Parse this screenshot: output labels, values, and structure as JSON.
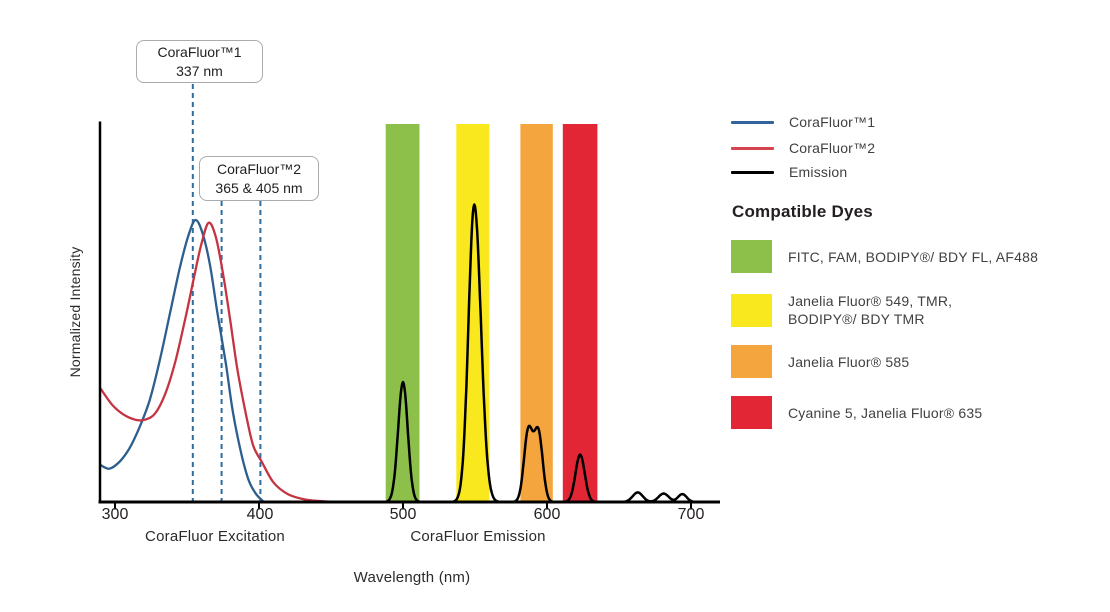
{
  "chart_data": {
    "type": "line",
    "title": "",
    "xlabel": "Wavelength (nm)",
    "ylabel": "Normalized Intensity",
    "x_ticks": [
      300,
      400,
      500,
      600,
      700
    ],
    "x_range_nm": [
      290,
      716
    ],
    "y_range": [
      0,
      1.35
    ],
    "grid": false,
    "legend_position": "right",
    "section_labels": [
      {
        "text": "CoraFluor Excitation"
      },
      {
        "text": "CoraFluor Emission"
      }
    ],
    "series": [
      {
        "name": "CoraFluor™1",
        "role": "excitation",
        "color": "#2d5e8e",
        "points": [
          [
            290,
            0.131
          ],
          [
            296,
            0.118
          ],
          [
            303,
            0.142
          ],
          [
            310,
            0.19
          ],
          [
            317,
            0.265
          ],
          [
            324,
            0.36
          ],
          [
            331,
            0.5
          ],
          [
            338,
            0.665
          ],
          [
            345,
            0.83
          ],
          [
            351,
            0.945
          ],
          [
            356,
            1.0
          ],
          [
            361,
            0.95
          ],
          [
            366,
            0.84
          ],
          [
            371,
            0.675
          ],
          [
            377,
            0.49
          ],
          [
            382,
            0.315
          ],
          [
            388,
            0.165
          ],
          [
            393,
            0.075
          ],
          [
            398,
            0.028
          ],
          [
            403,
            0.002
          ]
        ]
      },
      {
        "name": "CoraFluor™2",
        "role": "excitation",
        "color": "#c53442",
        "points": [
          [
            290,
            0.402
          ],
          [
            298,
            0.345
          ],
          [
            306,
            0.31
          ],
          [
            314,
            0.292
          ],
          [
            321,
            0.292
          ],
          [
            328,
            0.315
          ],
          [
            335,
            0.385
          ],
          [
            342,
            0.5
          ],
          [
            349,
            0.655
          ],
          [
            355,
            0.8
          ],
          [
            360,
            0.915
          ],
          [
            365,
            0.99
          ],
          [
            370,
            0.94
          ],
          [
            375,
            0.81
          ],
          [
            380,
            0.645
          ],
          [
            385,
            0.47
          ],
          [
            391,
            0.31
          ],
          [
            396,
            0.2
          ],
          [
            402,
            0.142
          ],
          [
            410,
            0.07
          ],
          [
            420,
            0.028
          ],
          [
            432,
            0.009
          ],
          [
            446,
            0.002
          ],
          [
            462,
            0.0
          ]
        ]
      },
      {
        "name": "Emission",
        "role": "emission",
        "color": "#000000",
        "peaks": [
          {
            "center_nm": 500,
            "height": 0.425,
            "sigma_left": 3.4,
            "sigma_right": 3.3
          },
          {
            "center_nm": 549.5,
            "height": 1.055,
            "sigma_left": 4.0,
            "sigma_right": 4.6
          },
          {
            "center_nm": 587,
            "height": 0.25,
            "sigma_left": 3.0,
            "sigma_right": 3.0
          },
          {
            "center_nm": 594,
            "height": 0.245,
            "sigma_left": 3.0,
            "sigma_right": 3.0
          },
          {
            "center_nm": 623,
            "height": 0.168,
            "sigma_left": 3.2,
            "sigma_right": 3.2
          },
          {
            "center_nm": 663,
            "height": 0.034,
            "sigma_left": 3.5,
            "sigma_right": 3.5
          },
          {
            "center_nm": 681,
            "height": 0.03,
            "sigma_left": 3.5,
            "sigma_right": 3.5
          },
          {
            "center_nm": 694,
            "height": 0.028,
            "sigma_left": 3.0,
            "sigma_right": 3.0
          }
        ]
      }
    ],
    "filter_bands": [
      {
        "nm_min": 488,
        "nm_max": 511.5,
        "color": "#8cc04b"
      },
      {
        "nm_min": 537,
        "nm_max": 560,
        "color": "#f9e81e"
      },
      {
        "nm_min": 581.5,
        "nm_max": 604,
        "color": "#f5a53d"
      },
      {
        "nm_min": 611,
        "nm_max": 635,
        "color": "#e32636"
      }
    ],
    "marker_color": "#2e6da0",
    "annotations": [
      {
        "title": "CoraFluor™1",
        "value": "337 nm",
        "markers_nm_as_drawn": [
          354
        ]
      },
      {
        "title": "CoraFluor™2",
        "value": "365 & 405 nm",
        "markers_nm_as_drawn": [
          374,
          401
        ]
      }
    ]
  },
  "legend": {
    "series": [
      {
        "label": "CoraFluor™1",
        "color": "#31639c"
      },
      {
        "label": "CoraFluor™2",
        "color": "#d4434f"
      },
      {
        "label": "Emission",
        "color": "#000000"
      }
    ],
    "heading": "Compatible Dyes",
    "dyes": [
      {
        "color": "#8cc04b",
        "label": "FITC, FAM, BODIPY®/ BDY FL, AF488"
      },
      {
        "color": "#f9e81e",
        "label": "Janelia Fluor® 549, TMR,\nBODIPY®/ BDY TMR"
      },
      {
        "color": "#f5a53d",
        "label": "Janelia Fluor® 585"
      },
      {
        "color": "#e32636",
        "label": "Cyanine 5, Janelia Fluor® 635"
      }
    ]
  }
}
